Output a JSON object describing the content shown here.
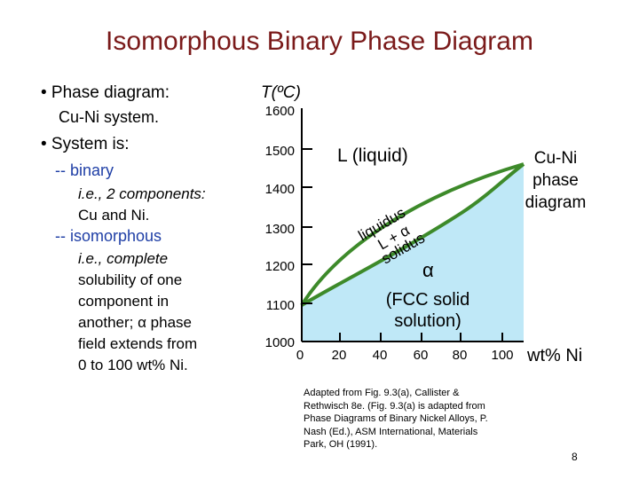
{
  "title": "Isomorphous Binary Phase Diagram",
  "left": {
    "bullet1": "• Phase diagram:",
    "bullet1_sub": "Cu-Ni system.",
    "bullet2": "• System is:",
    "binary": "-- binary",
    "binary_desc": [
      "i.e., 2 components:",
      "Cu and Ni."
    ],
    "isomorphous": "-- isomorphous",
    "iso_desc": [
      "i.e., complete",
      "solubility of one",
      "component in",
      "another; α phase",
      "field extends from",
      "0 to 100 wt% Ni."
    ]
  },
  "diagram": {
    "y_axis_title": "T(ºC)",
    "y_ticks": [
      "1600",
      "1500",
      "1400",
      "1300",
      "1200",
      "1100",
      "1000"
    ],
    "x_ticks": [
      "0",
      "20",
      "40",
      "60",
      "80",
      "100"
    ],
    "x_units": "wt% Ni",
    "liquid_label": "L (liquid)",
    "liquidus_label": "liquidus",
    "solidus_label": "solidus",
    "two_phase_label": "L + α",
    "alpha_symbol": "α",
    "alpha_desc": [
      "(FCC solid",
      "solution)"
    ],
    "side_note": [
      "Cu-Ni",
      "phase",
      "diagram"
    ],
    "colors": {
      "liquid_fill": "#ffffff",
      "alpha_fill": "#bfe8f7",
      "curve": "#3d8a2a",
      "title": "#7a1a1a",
      "emphasis": "#1f3fa6"
    }
  },
  "caption": [
    "Adapted from Fig. 9.3(a), Callister &",
    "Rethwisch 8e. (Fig. 9.3(a) is adapted from",
    "Phase Diagrams of Binary Nickel Alloys, P.",
    "Nash (Ed.), ASM International, Materials",
    "Park, OH (1991)."
  ],
  "page_number": "8"
}
